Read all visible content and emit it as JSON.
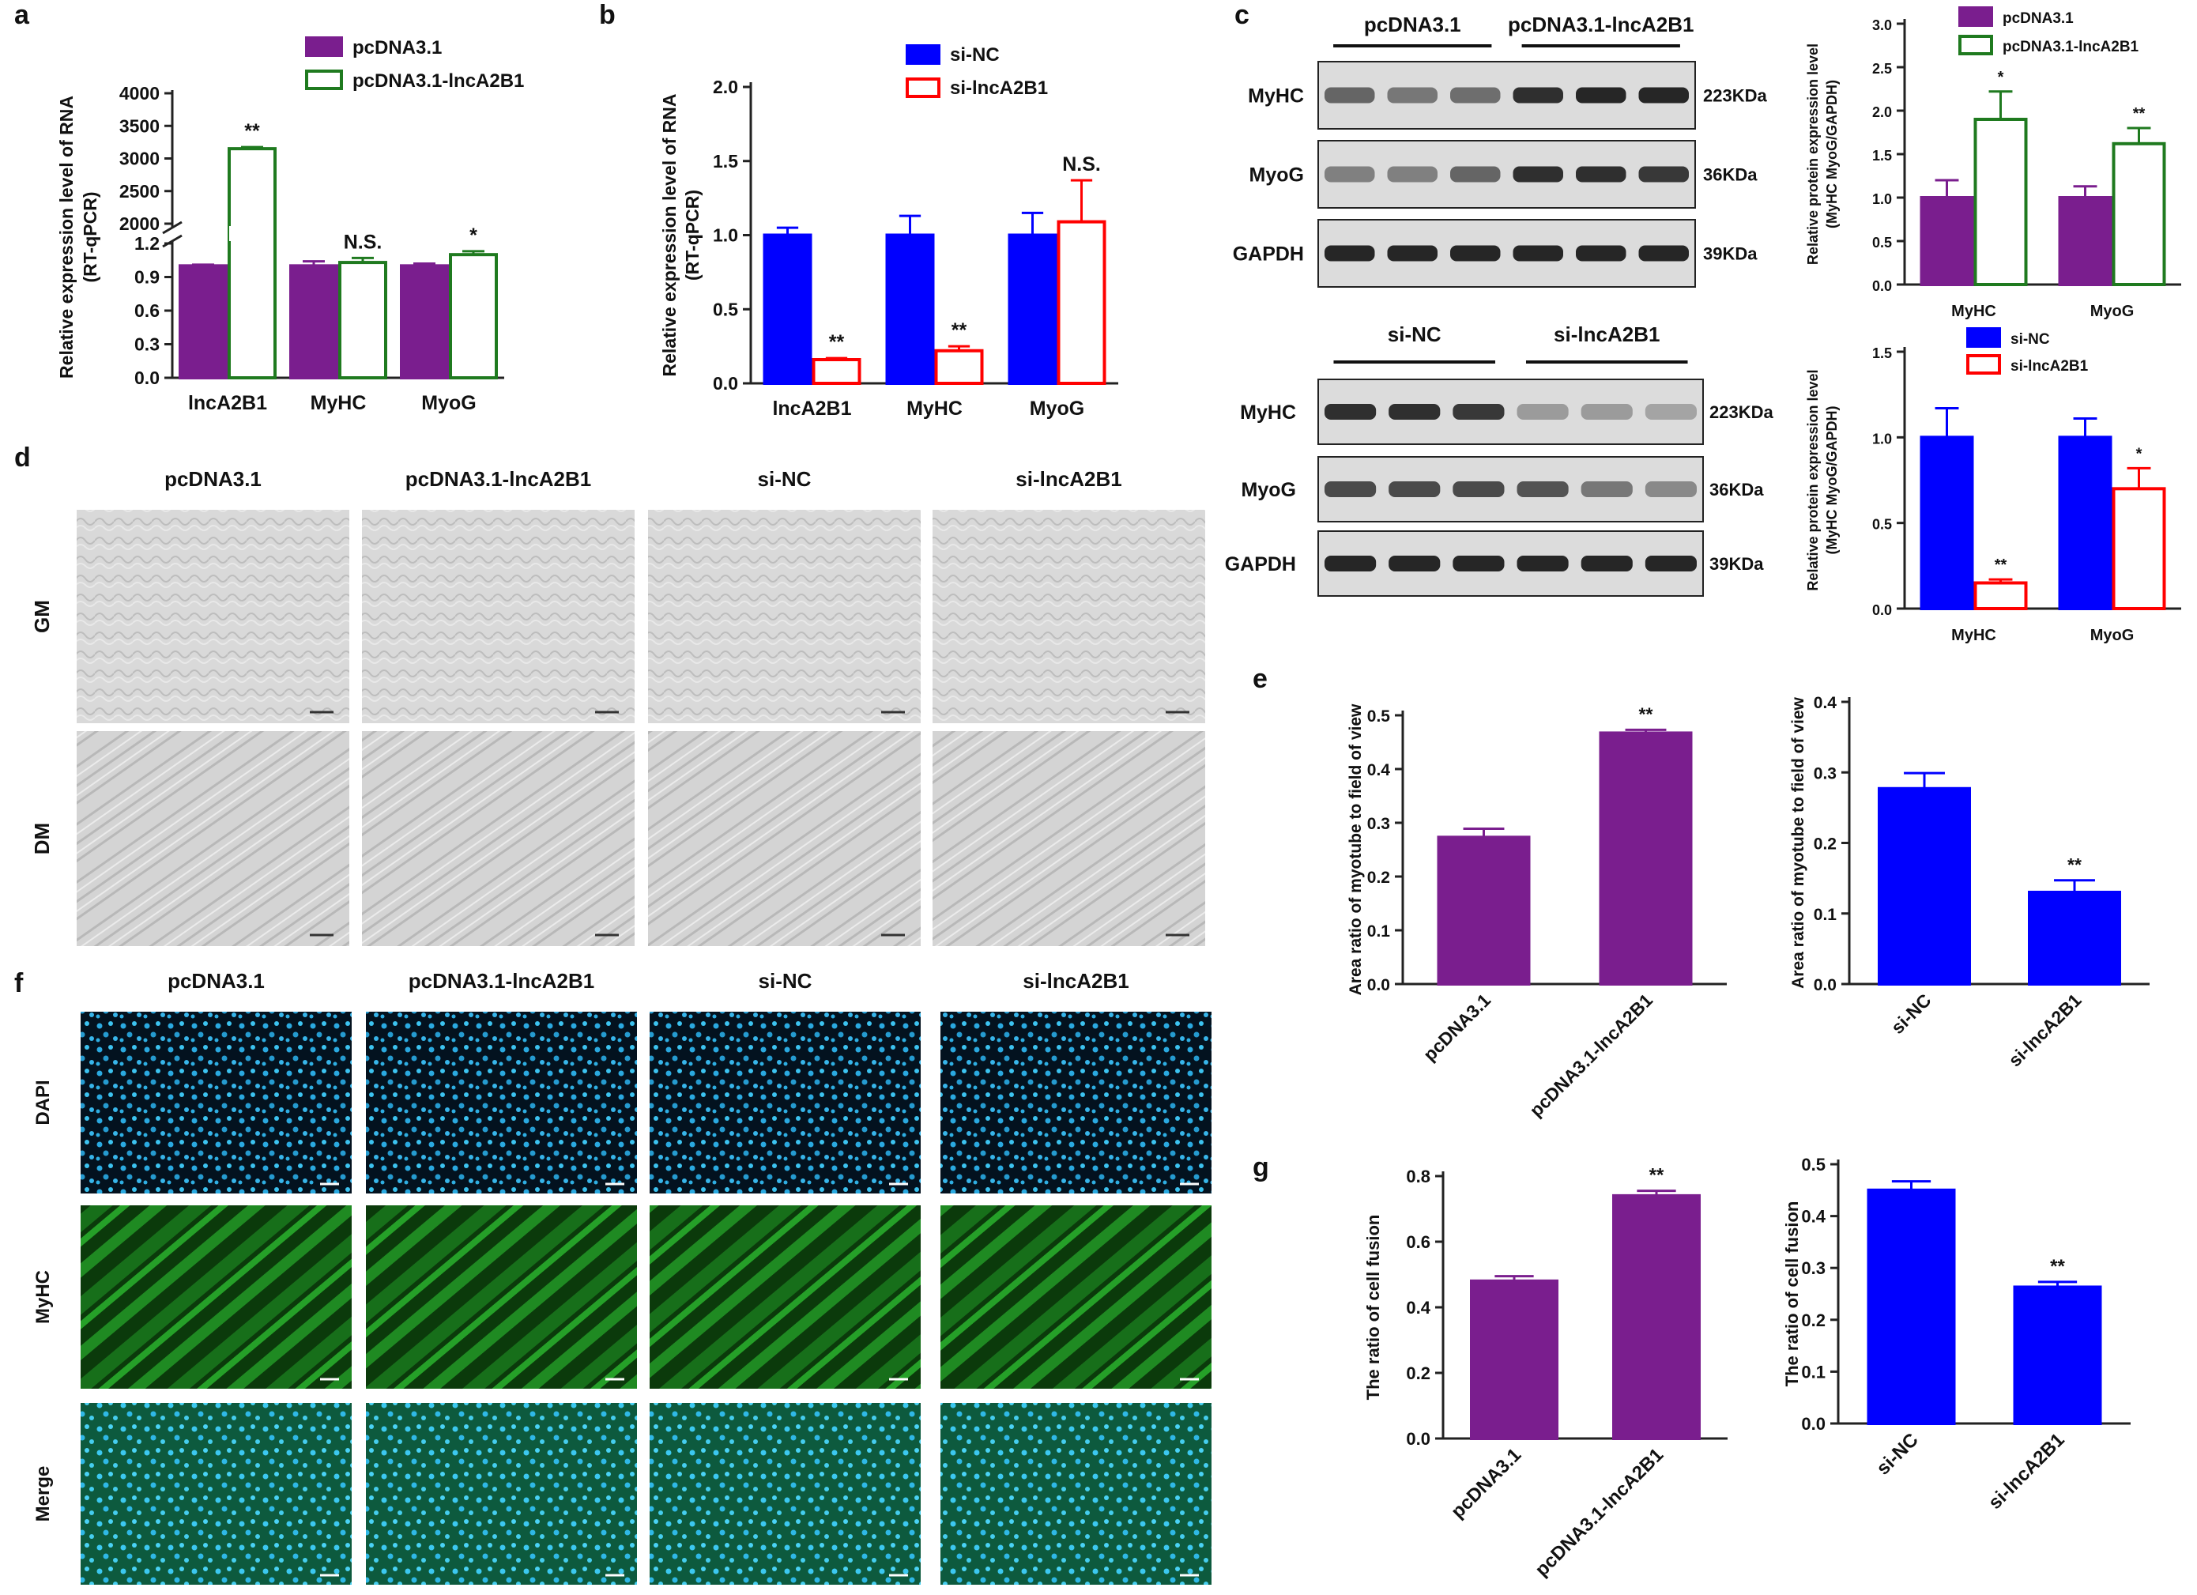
{
  "panel_letters": [
    "a",
    "b",
    "c",
    "d",
    "e",
    "f",
    "g"
  ],
  "colors": {
    "purple": "#7a1e8e",
    "green": "#1f7a1f",
    "blue": "#0000ff",
    "red": "#ff0000",
    "cell_phase_bg": "#d8d8d8",
    "dapi": "#2ab8e6",
    "myhc_green": "#1d8c1d"
  },
  "chart_data": [
    {
      "id": "a",
      "type": "bar",
      "categories": [
        "lncA2B1",
        "MyHC",
        "MyoG"
      ],
      "series": [
        {
          "name": "pcDNA3.1",
          "values": [
            1.0,
            1.0,
            1.0
          ],
          "errors": [
            0.01,
            0.04,
            0.02
          ]
        },
        {
          "name": "pcDNA3.1-lncA2B1",
          "values": [
            3150,
            1.03,
            1.1
          ],
          "errors": [
            25,
            0.04,
            0.03
          ]
        }
      ],
      "annotations": [
        "**",
        "N.S.",
        "*"
      ],
      "ylabel": "Relative expression level of RNA\n(RT-qPCR)",
      "broken_axis": {
        "lower_ticks": [
          "0.0",
          "0.3",
          "0.6",
          "0.9",
          "1.2"
        ],
        "upper_ticks": [
          "2000",
          "2500",
          "3000",
          "3500",
          "4000"
        ],
        "lower_max": 1.2,
        "upper_range": [
          2000,
          4000
        ]
      }
    },
    {
      "id": "b",
      "type": "bar",
      "categories": [
        "lncA2B1",
        "MyHC",
        "MyoG"
      ],
      "series": [
        {
          "name": "si-NC",
          "values": [
            1.0,
            1.0,
            1.0
          ],
          "errors": [
            0.05,
            0.13,
            0.15
          ]
        },
        {
          "name": "si-lncA2B1",
          "values": [
            0.16,
            0.22,
            1.09
          ],
          "errors": [
            0.01,
            0.03,
            0.28
          ]
        }
      ],
      "annotations": [
        "**",
        "**",
        "N.S."
      ],
      "ylabel": "Relative expression level of RNA\n(RT-qPCR)",
      "ylim": [
        0,
        2.0
      ],
      "yticks": [
        "0.0",
        "0.5",
        "1.0",
        "1.5",
        "2.0"
      ]
    },
    {
      "id": "c1",
      "type": "bar",
      "categories": [
        "MyHC",
        "MyoG"
      ],
      "series": [
        {
          "name": "pcDNA3.1",
          "values": [
            1.0,
            1.0
          ],
          "errors": [
            0.2,
            0.13
          ]
        },
        {
          "name": "pcDNA3.1-lncA2B1",
          "values": [
            1.9,
            1.62
          ],
          "errors": [
            0.32,
            0.18
          ]
        }
      ],
      "annotations": [
        "*",
        "**"
      ],
      "ylabel": "Relative protein expression level\n(MyHC MyoG/GAPDH)",
      "ylim": [
        0,
        3.0
      ],
      "yticks": [
        "0.0",
        "0.5",
        "1.0",
        "1.5",
        "2.0",
        "2.5",
        "3.0"
      ]
    },
    {
      "id": "c2",
      "type": "bar",
      "categories": [
        "MyHC",
        "MyoG"
      ],
      "series": [
        {
          "name": "si-NC",
          "values": [
            1.0,
            1.0
          ],
          "errors": [
            0.17,
            0.11
          ]
        },
        {
          "name": "si-lncA2B1",
          "values": [
            0.15,
            0.7
          ],
          "errors": [
            0.02,
            0.12
          ]
        }
      ],
      "annotations": [
        "**",
        "*"
      ],
      "ylabel": "Relative protein expression level\n(MyHC MyoG/GAPDH)",
      "ylim": [
        0,
        1.5
      ],
      "yticks": [
        "0.0",
        "0.5",
        "1.0",
        "1.5"
      ]
    },
    {
      "id": "e1",
      "type": "bar",
      "categories": [
        "pcDNA3.1",
        "pcDNA3.1-lncA2B1"
      ],
      "values": [
        0.273,
        0.467
      ],
      "errors": [
        0.016,
        0.006
      ],
      "annotations": [
        "",
        "**"
      ],
      "ylabel": "Area ratio of myotube to field of view",
      "ylim": [
        0,
        0.5
      ],
      "yticks": [
        "0.0",
        "0.1",
        "0.2",
        "0.3",
        "0.4",
        "0.5"
      ]
    },
    {
      "id": "e2",
      "type": "bar",
      "categories": [
        "si-NC",
        "si-lncA2B1"
      ],
      "values": [
        0.277,
        0.13
      ],
      "errors": [
        0.022,
        0.017
      ],
      "annotations": [
        "",
        "**"
      ],
      "ylabel": "Area ratio of myotube to field of view",
      "ylim": [
        0,
        0.4
      ],
      "yticks": [
        "0.0",
        "0.1",
        "0.2",
        "0.3",
        "0.4"
      ]
    },
    {
      "id": "g1",
      "type": "bar",
      "categories": [
        "pcDNA3.1",
        "pcDNA3.1-lncA2B1"
      ],
      "values": [
        0.48,
        0.74
      ],
      "errors": [
        0.015,
        0.015
      ],
      "annotations": [
        "",
        "**"
      ],
      "ylabel": "The ratio of cell fusion",
      "ylim": [
        0,
        0.8
      ],
      "yticks": [
        "0.0",
        "0.2",
        "0.4",
        "0.6",
        "0.8"
      ]
    },
    {
      "id": "g2",
      "type": "bar",
      "categories": [
        "si-NC",
        "si-lncA2B1"
      ],
      "values": [
        0.45,
        0.263
      ],
      "errors": [
        0.017,
        0.01
      ],
      "annotations": [
        "",
        "**"
      ],
      "ylabel": "The ratio of cell fusion",
      "ylim": [
        0,
        0.5
      ],
      "yticks": [
        "0.0",
        "0.1",
        "0.2",
        "0.3",
        "0.4",
        "0.5"
      ]
    }
  ],
  "western_blot": {
    "top": {
      "groups": [
        "pcDNA3.1",
        "pcDNA3.1-lncA2B1"
      ],
      "rows": [
        {
          "label": "MyHC",
          "size": "223KDa",
          "intensities": [
            0.55,
            0.45,
            0.5,
            0.85,
            0.9,
            0.9
          ]
        },
        {
          "label": "MyoG",
          "size": "36KDa",
          "intensities": [
            0.4,
            0.4,
            0.55,
            0.85,
            0.85,
            0.8
          ]
        },
        {
          "label": "GAPDH",
          "size": "39KDa",
          "intensities": [
            0.9,
            0.9,
            0.9,
            0.9,
            0.9,
            0.9
          ]
        }
      ]
    },
    "bottom": {
      "groups": [
        "si-NC",
        "si-lncA2B1"
      ],
      "rows": [
        {
          "label": "MyHC",
          "size": "223KDa",
          "intensities": [
            0.85,
            0.85,
            0.8,
            0.25,
            0.25,
            0.2
          ]
        },
        {
          "label": "MyoG",
          "size": "36KDa",
          "intensities": [
            0.7,
            0.7,
            0.7,
            0.65,
            0.45,
            0.35
          ]
        },
        {
          "label": "GAPDH",
          "size": "39KDa",
          "intensities": [
            0.9,
            0.9,
            0.9,
            0.9,
            0.9,
            0.9
          ]
        }
      ]
    }
  },
  "panel_d": {
    "columns": [
      "pcDNA3.1",
      "pcDNA3.1-lncA2B1",
      "si-NC",
      "si-lncA2B1"
    ],
    "rows": [
      "GM",
      "DM"
    ]
  },
  "panel_f": {
    "columns": [
      "pcDNA3.1",
      "pcDNA3.1-lncA2B1",
      "si-NC",
      "si-lncA2B1"
    ],
    "rows": [
      "DAPI",
      "MyHC",
      "Merge"
    ]
  }
}
